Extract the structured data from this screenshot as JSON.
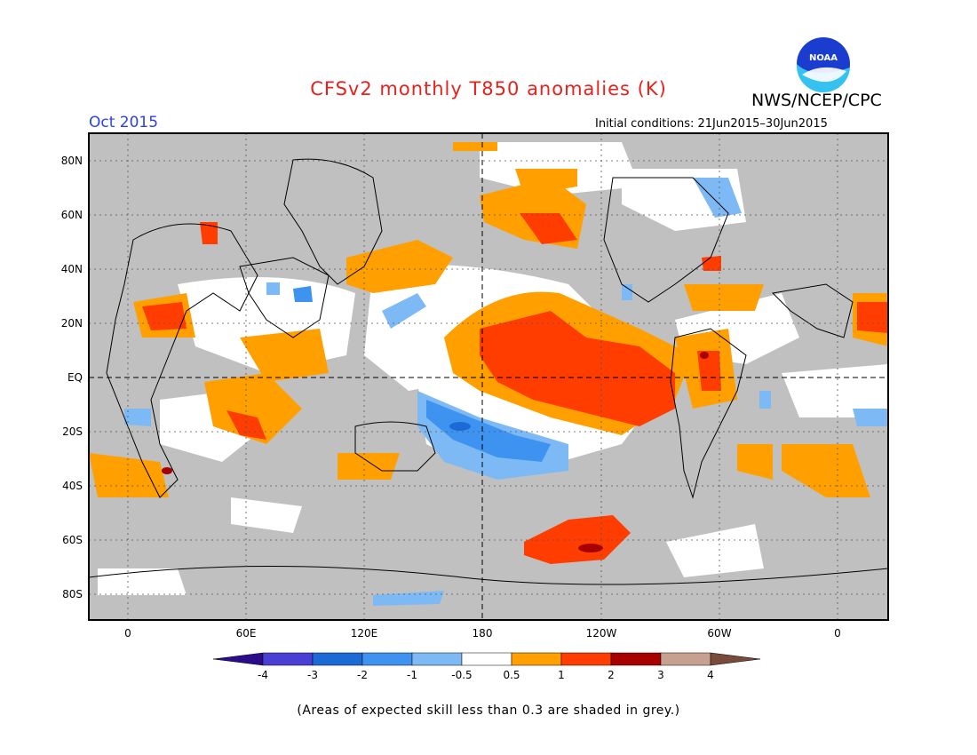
{
  "header": {
    "title": "CFSv2 monthly T850 anomalies (K)",
    "agency": "NWS/NCEP/CPC",
    "logo_text": "NOAA",
    "month": "Oct 2015",
    "initial_conditions": "Initial conditions: 21Jun2015–30Jun2015"
  },
  "map": {
    "lat_labels": [
      "80N",
      "60N",
      "40N",
      "20N",
      "EQ",
      "20S",
      "40S",
      "60S",
      "80S"
    ],
    "lon_labels": [
      "0",
      "60E",
      "120E",
      "180",
      "120W",
      "60W",
      "0"
    ],
    "colors": {
      "low_skill_grey": "#c0c0c0",
      "neutral": "#ffffff",
      "coast": "#000000"
    }
  },
  "colorbar": {
    "labels": [
      "-4",
      "-3",
      "-2",
      "-1",
      "-0.5",
      "0.5",
      "1",
      "2",
      "3",
      "4"
    ],
    "colors": [
      "#2b0d8c",
      "#4a3fd4",
      "#1c6ad6",
      "#3f93f0",
      "#7dbaf5",
      "#ffffff",
      "#ff9f00",
      "#ff3d00",
      "#a80000",
      "#c8a090",
      "#7a4a3a"
    ]
  },
  "footnote": "(Areas of expected skill less than 0.3 are shaded in grey.)"
}
